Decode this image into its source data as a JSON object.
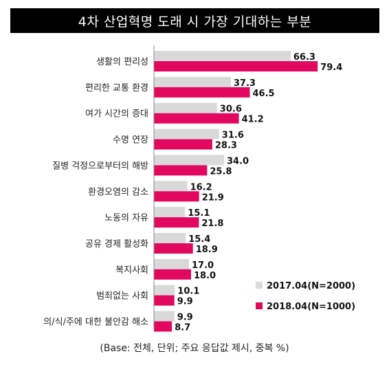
{
  "colors": {
    "series_2017": "#d9d9d9",
    "series_2018": "#e2075f",
    "title_bg": "#000000"
  },
  "chart_data": {
    "type": "bar",
    "orientation": "horizontal",
    "title": "4차 산업혁명 도래 시 가장 기대하는 부분",
    "categories": [
      "생활의 편리성",
      "편리한 교통 환경",
      "여가 시간의 증대",
      "수명 연장",
      "질병 걱정으로부터의 해방",
      "환경오염의 감소",
      "노동의 자유",
      "공유 경제 활성화",
      "복지사회",
      "범죄없는 사회",
      "의/식/주에 대한 불안감 해소"
    ],
    "series": [
      {
        "name": "2017.04(N=2000)",
        "color": "#d9d9d9",
        "values": [
          66.3,
          37.3,
          30.6,
          31.6,
          34.0,
          16.2,
          15.1,
          15.4,
          17.0,
          10.1,
          9.9
        ]
      },
      {
        "name": "2018.04(N=1000)",
        "color": "#e2075f",
        "values": [
          79.4,
          46.5,
          41.2,
          28.3,
          25.8,
          21.9,
          21.8,
          18.9,
          18.0,
          9.9,
          8.7
        ]
      }
    ],
    "xlim": [
      0,
      100
    ],
    "grid": false,
    "legend_position": "bottom-right",
    "footnote": "(Base: 전체, 단위; 주요 응답값 제시, 중복 %)"
  }
}
